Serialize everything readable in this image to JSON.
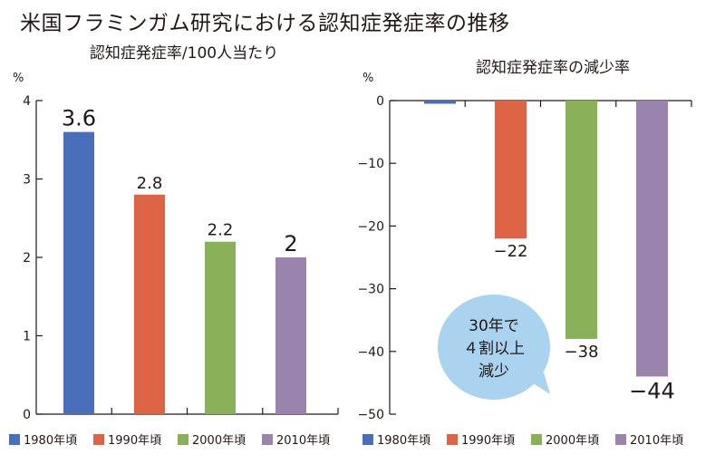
{
  "title": "米国フラミンガム研究における認知症発症率の推移",
  "chart_data": [
    {
      "type": "bar",
      "title": "認知症発症率/100人当たり",
      "unit": "%",
      "categories": [
        "1980年頃",
        "1990年頃",
        "2000年頃",
        "2010年頃"
      ],
      "values": [
        3.6,
        2.8,
        2.2,
        2
      ],
      "value_labels": [
        "3.6",
        "2.8",
        "2.2",
        "2"
      ],
      "ylim": [
        0,
        4
      ],
      "yticks": [
        0,
        1,
        2,
        3,
        4
      ],
      "ytick_labels": [
        "0",
        "1",
        "2",
        "3",
        "4"
      ],
      "grid": false,
      "legend_position": "bottom",
      "colors": [
        "#4a6fba",
        "#dc6445",
        "#88b15a",
        "#9a83ad"
      ]
    },
    {
      "type": "bar",
      "title": "認知症発症率の減少率",
      "unit": "%",
      "categories": [
        "1980年頃",
        "1990年頃",
        "2000年頃",
        "2010年頃"
      ],
      "values": [
        -0.5,
        -22,
        -38,
        -44
      ],
      "value_labels": [
        "",
        "−22",
        "−38",
        "−44"
      ],
      "ylim": [
        -50,
        0
      ],
      "yticks": [
        0,
        -10,
        -20,
        -30,
        -40,
        -50
      ],
      "ytick_labels": [
        "0",
        "−10",
        "−20",
        "−30",
        "−40",
        "−50"
      ],
      "grid": false,
      "legend_position": "bottom",
      "colors": [
        "#4a6fba",
        "#dc6445",
        "#88b15a",
        "#9a83ad"
      ],
      "annotation": {
        "lines": [
          "30年で",
          "４割以上",
          "減少"
        ],
        "color": "#a9d3ef"
      }
    }
  ]
}
